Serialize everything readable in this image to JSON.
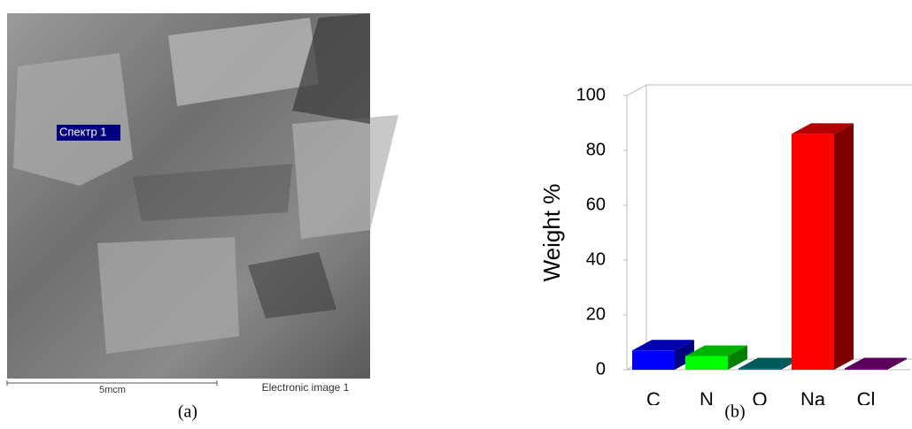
{
  "image": {
    "marker_label": "Спектр 1",
    "scale_label": "5mcm",
    "image_label": "Electronic image 1",
    "panel_label": "(a)"
  },
  "chart_data": {
    "type": "bar3d",
    "panel_label": "(b)",
    "y_label": "Weight %",
    "categories": [
      "C",
      "N",
      "O",
      "Na",
      "Cl"
    ],
    "values": [
      7,
      5,
      0.5,
      86,
      0.5
    ],
    "colors": [
      "#0000ff",
      "#00ff00",
      "#008080",
      "#ff0000",
      "#800080"
    ],
    "ylim": [
      0,
      100
    ],
    "yticks": [
      0,
      20,
      40,
      60,
      80,
      100
    ]
  }
}
